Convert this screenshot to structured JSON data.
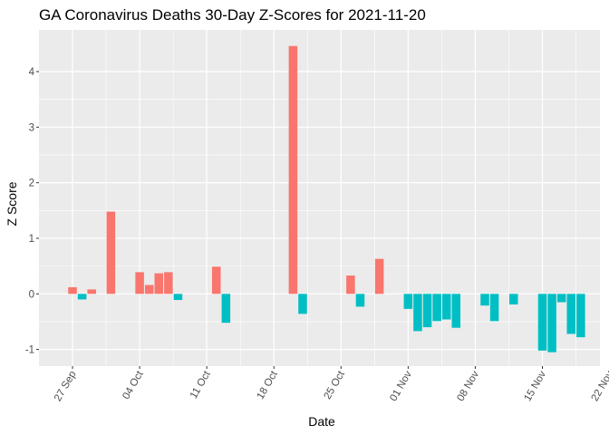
{
  "chart_data": {
    "type": "bar",
    "title": "GA Coronavirus Deaths 30-Day Z-Scores for 2021-11-20",
    "xlabel": "Date",
    "ylabel": "Z Score",
    "ylim": [
      -1.3,
      4.75
    ],
    "y_ticks": [
      -1,
      0,
      1,
      2,
      3,
      4
    ],
    "x_range_days": [
      -3.5,
      55
    ],
    "x_ticks": [
      {
        "label": "27 Sep",
        "day": 0
      },
      {
        "label": "04 Oct",
        "day": 7
      },
      {
        "label": "11 Oct",
        "day": 14
      },
      {
        "label": "18 Oct",
        "day": 21
      },
      {
        "label": "25 Oct",
        "day": 28
      },
      {
        "label": "01 Nov",
        "day": 35
      },
      {
        "label": "08 Nov",
        "day": 42
      },
      {
        "label": "15 Nov",
        "day": 49
      },
      {
        "label": "22 Nov",
        "day": 56
      }
    ],
    "grid": true,
    "legend": "none",
    "colors": {
      "positive": "#f8766d",
      "negative": "#00bfc4",
      "panel": "#ebebeb",
      "grid": "#ffffff"
    },
    "bars": [
      {
        "date": "2021-09-27",
        "day": 0,
        "value": 0.12
      },
      {
        "date": "2021-09-28",
        "day": 1,
        "value": -0.1
      },
      {
        "date": "2021-09-29",
        "day": 2,
        "value": 0.08
      },
      {
        "date": "2021-09-30",
        "day": 3,
        "value": 0.0
      },
      {
        "date": "2021-10-01",
        "day": 4,
        "value": 1.48
      },
      {
        "date": "2021-10-02",
        "day": 5,
        "value": 0.0
      },
      {
        "date": "2021-10-03",
        "day": 6,
        "value": 0.0
      },
      {
        "date": "2021-10-04",
        "day": 7,
        "value": 0.39
      },
      {
        "date": "2021-10-05",
        "day": 8,
        "value": 0.16
      },
      {
        "date": "2021-10-06",
        "day": 9,
        "value": 0.37
      },
      {
        "date": "2021-10-07",
        "day": 10,
        "value": 0.39
      },
      {
        "date": "2021-10-08",
        "day": 11,
        "value": -0.11
      },
      {
        "date": "2021-10-09",
        "day": 12,
        "value": 0.0
      },
      {
        "date": "2021-10-10",
        "day": 13,
        "value": 0.0
      },
      {
        "date": "2021-10-11",
        "day": 14,
        "value": 0.0
      },
      {
        "date": "2021-10-12",
        "day": 15,
        "value": 0.49
      },
      {
        "date": "2021-10-13",
        "day": 16,
        "value": -0.52
      },
      {
        "date": "2021-10-14",
        "day": 17,
        "value": 0.0
      },
      {
        "date": "2021-10-15",
        "day": 18,
        "value": 0.0
      },
      {
        "date": "2021-10-16",
        "day": 19,
        "value": 0.0
      },
      {
        "date": "2021-10-17",
        "day": 20,
        "value": 0.0
      },
      {
        "date": "2021-10-18",
        "day": 21,
        "value": 0.0
      },
      {
        "date": "2021-10-19",
        "day": 22,
        "value": 0.0
      },
      {
        "date": "2021-10-20",
        "day": 23,
        "value": 4.46
      },
      {
        "date": "2021-10-21",
        "day": 24,
        "value": -0.36
      },
      {
        "date": "2021-10-22",
        "day": 25,
        "value": 0.0
      },
      {
        "date": "2021-10-23",
        "day": 26,
        "value": 0.0
      },
      {
        "date": "2021-10-24",
        "day": 27,
        "value": 0.0
      },
      {
        "date": "2021-10-25",
        "day": 28,
        "value": 0.0
      },
      {
        "date": "2021-10-26",
        "day": 29,
        "value": 0.33
      },
      {
        "date": "2021-10-27",
        "day": 30,
        "value": -0.23
      },
      {
        "date": "2021-10-28",
        "day": 31,
        "value": 0.0
      },
      {
        "date": "2021-10-29",
        "day": 32,
        "value": 0.63
      },
      {
        "date": "2021-10-30",
        "day": 33,
        "value": 0.0
      },
      {
        "date": "2021-10-31",
        "day": 34,
        "value": 0.0
      },
      {
        "date": "2021-11-01",
        "day": 35,
        "value": -0.27
      },
      {
        "date": "2021-11-02",
        "day": 36,
        "value": -0.67
      },
      {
        "date": "2021-11-03",
        "day": 37,
        "value": -0.6
      },
      {
        "date": "2021-11-04",
        "day": 38,
        "value": -0.49
      },
      {
        "date": "2021-11-05",
        "day": 39,
        "value": -0.46
      },
      {
        "date": "2021-11-06",
        "day": 40,
        "value": -0.61
      },
      {
        "date": "2021-11-07",
        "day": 41,
        "value": 0.0
      },
      {
        "date": "2021-11-08",
        "day": 42,
        "value": 0.0
      },
      {
        "date": "2021-11-09",
        "day": 43,
        "value": -0.21
      },
      {
        "date": "2021-11-10",
        "day": 44,
        "value": -0.49
      },
      {
        "date": "2021-11-11",
        "day": 45,
        "value": 0.0
      },
      {
        "date": "2021-11-12",
        "day": 46,
        "value": -0.19
      },
      {
        "date": "2021-11-13",
        "day": 47,
        "value": 0.0
      },
      {
        "date": "2021-11-14",
        "day": 48,
        "value": 0.0
      },
      {
        "date": "2021-11-15",
        "day": 49,
        "value": -1.02
      },
      {
        "date": "2021-11-16",
        "day": 50,
        "value": -1.05
      },
      {
        "date": "2021-11-17",
        "day": 51,
        "value": -0.15
      },
      {
        "date": "2021-11-18",
        "day": 52,
        "value": -0.72
      },
      {
        "date": "2021-11-19",
        "day": 53,
        "value": -0.78
      }
    ]
  }
}
